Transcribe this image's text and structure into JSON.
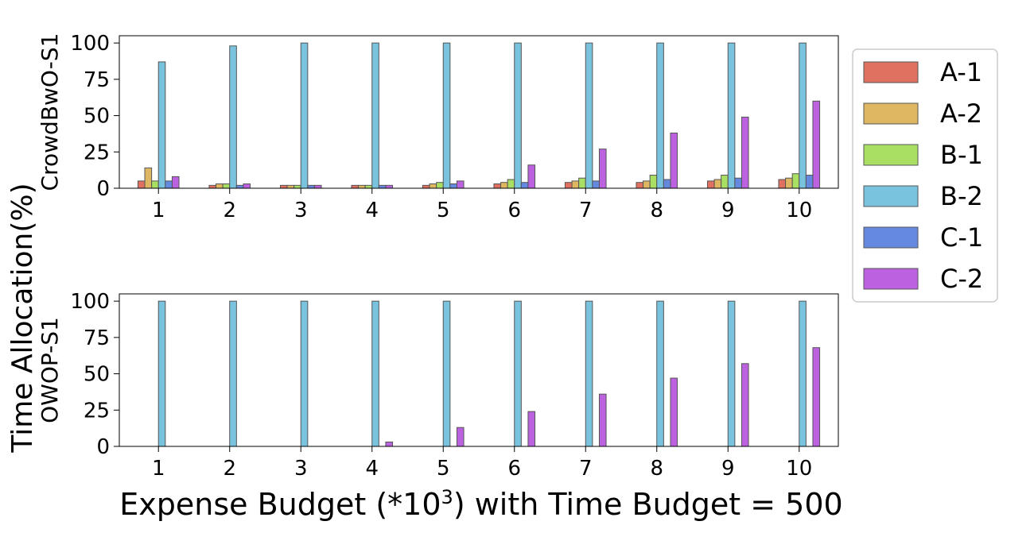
{
  "figure": {
    "shared_ylabel": "Time Allocation(%)",
    "xlabel_prefix": "Expense Budget (*10",
    "xlabel_superscript": "3",
    "xlabel_suffix": ") with Time Budget = 500"
  },
  "legend": {
    "placement": "right",
    "entries": [
      {
        "label": "A-1",
        "color": "#e07161"
      },
      {
        "label": "A-2",
        "color": "#dfb762"
      },
      {
        "label": "B-1",
        "color": "#a9df62"
      },
      {
        "label": "B-2",
        "color": "#7ac3df"
      },
      {
        "label": "C-1",
        "color": "#6689e0"
      },
      {
        "label": "C-2",
        "color": "#bc62e0"
      }
    ]
  },
  "chart_data": [
    {
      "type": "bar",
      "ylabel": "CrowdBwO-S1",
      "categories": [
        "1",
        "2",
        "3",
        "4",
        "5",
        "6",
        "7",
        "8",
        "9",
        "10"
      ],
      "ylim": [
        0,
        105
      ],
      "yticks": [
        "0",
        "25",
        "50",
        "75",
        "100"
      ],
      "grid": false,
      "series": [
        {
          "name": "A-1",
          "values": [
            5,
            2,
            2,
            2,
            2,
            3,
            4,
            4,
            5,
            6
          ]
        },
        {
          "name": "A-2",
          "values": [
            14,
            3,
            2,
            2,
            3,
            4,
            5,
            5,
            6,
            7
          ]
        },
        {
          "name": "B-1",
          "values": [
            5,
            3,
            2,
            2,
            4,
            6,
            7,
            9,
            9,
            10
          ]
        },
        {
          "name": "B-2",
          "values": [
            87,
            98,
            100,
            100,
            100,
            100,
            100,
            100,
            100,
            100
          ]
        },
        {
          "name": "C-1",
          "values": [
            5,
            2,
            2,
            2,
            3,
            4,
            5,
            6,
            7,
            9
          ]
        },
        {
          "name": "C-2",
          "values": [
            8,
            3,
            2,
            2,
            5,
            16,
            27,
            38,
            49,
            60
          ]
        }
      ]
    },
    {
      "type": "bar",
      "ylabel": "OWOP-S1",
      "categories": [
        "1",
        "2",
        "3",
        "4",
        "5",
        "6",
        "7",
        "8",
        "9",
        "10"
      ],
      "ylim": [
        0,
        105
      ],
      "yticks": [
        "0",
        "25",
        "50",
        "75",
        "100"
      ],
      "grid": false,
      "series": [
        {
          "name": "A-1",
          "values": [
            0,
            0,
            0,
            0,
            0,
            0,
            0,
            0,
            0,
            0
          ]
        },
        {
          "name": "A-2",
          "values": [
            0,
            0,
            0,
            0,
            0,
            0,
            0,
            0,
            0,
            0
          ]
        },
        {
          "name": "B-1",
          "values": [
            0,
            0,
            0,
            0,
            0,
            0,
            0,
            0,
            0,
            0
          ]
        },
        {
          "name": "B-2",
          "values": [
            100,
            100,
            100,
            100,
            100,
            100,
            100,
            100,
            100,
            100
          ]
        },
        {
          "name": "C-1",
          "values": [
            0,
            0,
            0,
            0,
            0,
            0,
            0,
            0,
            0,
            0
          ]
        },
        {
          "name": "C-2",
          "values": [
            0,
            0,
            0,
            3,
            13,
            24,
            36,
            47,
            57,
            68
          ]
        }
      ]
    }
  ]
}
